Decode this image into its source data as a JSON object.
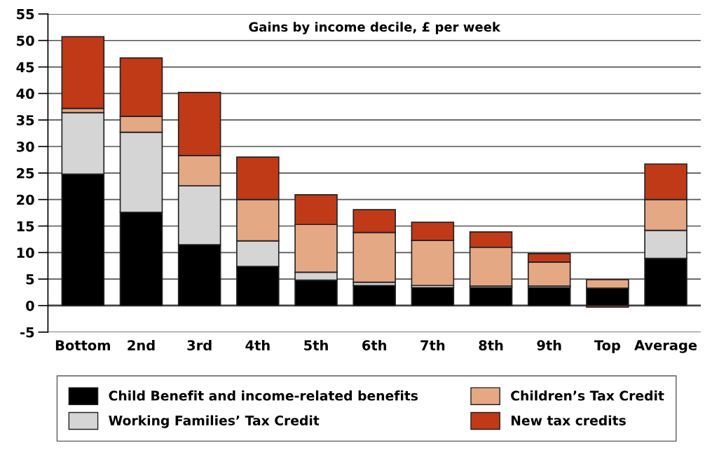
{
  "chart_data": {
    "type": "bar",
    "stacked": true,
    "title": "Gains by income decile, £ per week",
    "categories": [
      "Bottom",
      "2nd",
      "3rd",
      "4th",
      "5th",
      "6th",
      "7th",
      "8th",
      "9th",
      "Top",
      "Average"
    ],
    "series": [
      {
        "name": "Child Benefit and income-related benefits",
        "color": "#000000",
        "values": [
          24.8,
          17.6,
          11.5,
          7.4,
          4.8,
          3.8,
          3.4,
          3.4,
          3.4,
          3.3,
          8.9
        ]
      },
      {
        "name": "Working Families’ Tax Credit",
        "color": "#d5d5d5",
        "values": [
          11.6,
          15.1,
          11.1,
          4.8,
          1.5,
          0.6,
          0.4,
          0.3,
          0.3,
          0,
          5.3
        ]
      },
      {
        "name": "Children’s Tax Credit",
        "color": "#e5a885",
        "values": [
          0.8,
          3.0,
          5.7,
          7.8,
          9.0,
          9.4,
          8.5,
          7.3,
          4.5,
          1.6,
          5.8
        ]
      },
      {
        "name": "New tax credits",
        "color": "#c13a18",
        "values": [
          13.5,
          11.0,
          11.9,
          8.0,
          5.6,
          4.3,
          3.4,
          2.9,
          1.6,
          -0.3,
          6.7
        ]
      }
    ],
    "ylim": [
      -5,
      55
    ],
    "yticks": [
      -5,
      0,
      5,
      10,
      15,
      20,
      25,
      30,
      35,
      40,
      45,
      50,
      55
    ],
    "grid": "y",
    "legend": "bottom"
  }
}
